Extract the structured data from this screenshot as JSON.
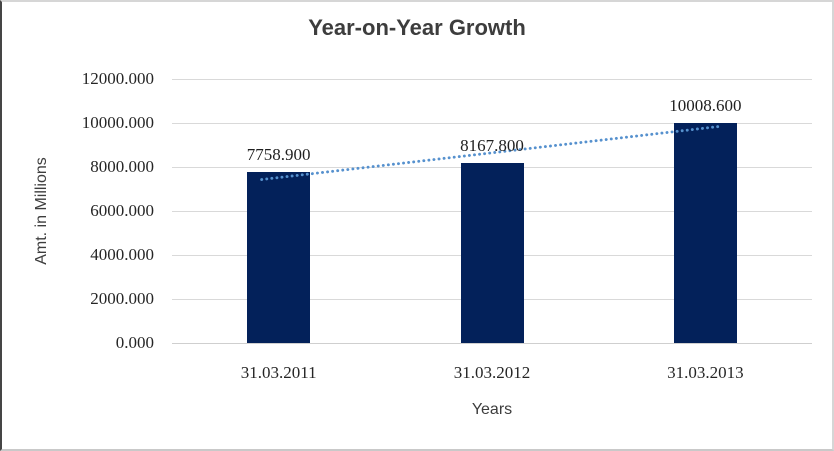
{
  "window": {
    "background": "#ffffff",
    "border_color": "#d6d6d6",
    "border_left_color": "#454545"
  },
  "chart_data": {
    "type": "bar",
    "title": "Year-on-Year Growth",
    "xlabel": "Years",
    "ylabel": "Amt. in Millions",
    "categories": [
      "31.03.2011",
      "31.03.2012",
      "31.03.2013"
    ],
    "values": [
      7758.9,
      8167.8,
      10008.6
    ],
    "data_labels": [
      "7758.900",
      "8167.800",
      "10008.600"
    ],
    "ylim": [
      0,
      12000
    ],
    "ytick_interval": 2000,
    "ytick_labels": [
      "0.000",
      "2000.000",
      "4000.000",
      "6000.000",
      "8000.000",
      "10000.000",
      "12000.000"
    ],
    "grid": true,
    "legend": "none",
    "bar_color": "#03215a",
    "gridline_color": "#d9d9d9",
    "trendline": {
      "type": "linear",
      "style": "dotted",
      "color": "#5691ce"
    }
  }
}
